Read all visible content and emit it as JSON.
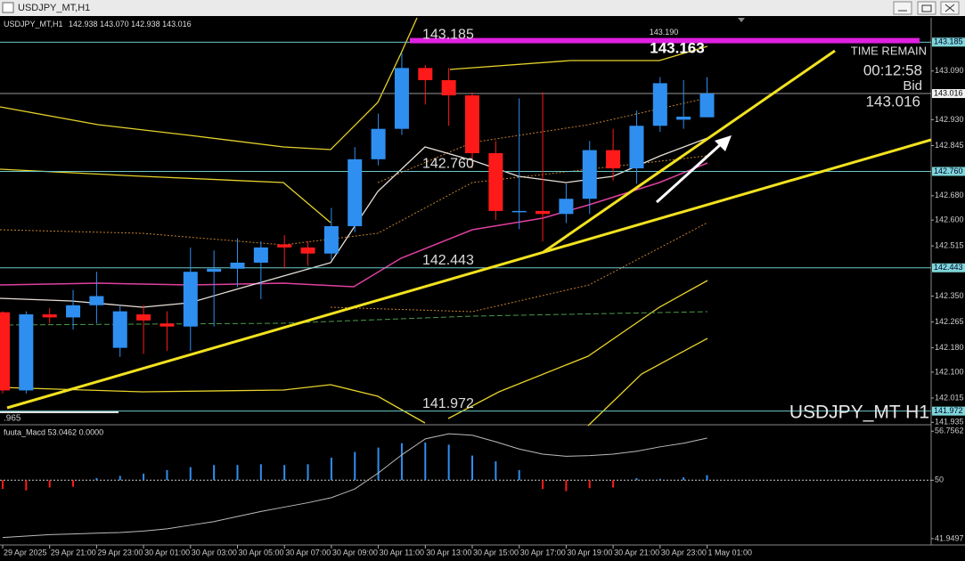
{
  "window": {
    "title": "USDJPY_MT,H1"
  },
  "chart_data": {
    "type": "candlestick",
    "symbol": "USDJPY_MT,H1",
    "ohlc_text": "142.938 143.070 142.938 143.016",
    "watermark": "USDJPY_MT H1",
    "edge_label": ".965",
    "categories": [
      "29 Apr 2025",
      null,
      "29 Apr 21:00",
      null,
      "29 Apr 23:00",
      null,
      "30 Apr 01:00",
      null,
      "30 Apr 03:00",
      null,
      "30 Apr 05:00",
      null,
      "30 Apr 07:00",
      null,
      "30 Apr 09:00",
      null,
      "30 Apr 11:00",
      null,
      "30 Apr 13:00",
      null,
      "30 Apr 15:00",
      null,
      "30 Apr 17:00",
      null,
      "30 Apr 19:00",
      null,
      "30 Apr 21:00",
      null,
      "30 Apr 23:00",
      null,
      "1 May 01:00"
    ],
    "open": [
      142.297,
      142.04,
      142.29,
      142.28,
      142.32,
      142.18,
      142.29,
      142.26,
      142.25,
      142.43,
      142.44,
      142.46,
      142.52,
      142.51,
      142.49,
      142.58,
      142.8,
      142.9,
      143.1,
      143.06,
      143.01,
      142.82,
      142.63,
      142.63,
      142.62,
      142.67,
      142.83,
      142.77,
      142.91,
      142.93,
      142.938
    ],
    "high": [
      142.3,
      142.3,
      142.31,
      142.37,
      142.43,
      142.32,
      142.32,
      142.3,
      142.51,
      142.5,
      142.54,
      142.53,
      142.55,
      142.53,
      142.64,
      142.84,
      142.95,
      143.15,
      143.11,
      143.1,
      143.02,
      142.86,
      143.0,
      143.02,
      142.72,
      142.86,
      142.9,
      142.96,
      143.07,
      143.06,
      143.07
    ],
    "low": [
      142.03,
      142.03,
      142.26,
      142.24,
      142.26,
      142.15,
      142.16,
      142.17,
      142.17,
      142.25,
      142.38,
      142.34,
      142.44,
      142.45,
      142.47,
      142.56,
      142.78,
      142.88,
      142.98,
      142.91,
      142.77,
      142.6,
      142.57,
      142.53,
      142.59,
      142.62,
      142.73,
      142.72,
      142.89,
      142.9,
      142.938
    ],
    "close": [
      142.04,
      142.29,
      142.28,
      142.32,
      142.35,
      142.3,
      142.27,
      142.25,
      142.43,
      142.44,
      142.46,
      142.51,
      142.51,
      142.49,
      142.58,
      142.8,
      142.9,
      143.1,
      143.06,
      143.01,
      142.82,
      142.63,
      142.63,
      142.62,
      142.67,
      142.83,
      142.77,
      142.91,
      143.05,
      142.94,
      143.016
    ],
    "up_color": "#2f8ff0",
    "down_color": "#ff1a1a",
    "ylim": [
      141.93,
      143.265
    ],
    "yticks": [
      {
        "value": 143.09,
        "label": "143.090"
      },
      {
        "value": 142.93,
        "label": "142.930"
      },
      {
        "value": 142.845,
        "label": "142.845"
      },
      {
        "value": 142.68,
        "label": "142.680"
      },
      {
        "value": 142.6,
        "label": "142.600"
      },
      {
        "value": 142.515,
        "label": "142.515"
      },
      {
        "value": 142.35,
        "label": "142.350"
      },
      {
        "value": 142.265,
        "label": "142.265"
      },
      {
        "value": 142.18,
        "label": "142.180"
      },
      {
        "value": 142.1,
        "label": "142.100"
      },
      {
        "value": 142.015,
        "label": "142.015"
      },
      {
        "value": 141.935,
        "label": "141.935"
      }
    ],
    "levels": [
      {
        "value": 143.185,
        "label": "143.185"
      },
      {
        "value": 142.76,
        "label": "142.760"
      },
      {
        "value": 142.443,
        "label": "142.443"
      },
      {
        "value": 141.972,
        "label": "141.972"
      }
    ],
    "resistance": {
      "value": 143.19,
      "label": "143.190"
    },
    "bid": 143.016,
    "price_note": 143.163,
    "countdown_label": "TIME REMAIN",
    "countdown": "00:12:58",
    "bid_label": "Bid",
    "macd": {
      "label": "fuuta_Macd 53.0462 0.0000",
      "ylim": [
        41.2,
        57.4
      ],
      "yticks": [
        56.7562,
        50,
        41.9497
      ],
      "histogram": [
        48.8,
        48.6,
        49.0,
        49.1,
        50.3,
        50.6,
        50.9,
        51.4,
        51.8,
        52.1,
        52.1,
        52.2,
        52.1,
        52.2,
        53.1,
        53.9,
        54.5,
        55.1,
        55.2,
        54.9,
        53.4,
        52.6,
        51.4,
        48.8,
        48.5,
        48.9,
        49.0,
        50.3,
        50.2,
        50.4,
        50.7
      ],
      "signal": [
        42.1,
        42.3,
        42.5,
        42.6,
        42.7,
        42.8,
        43.0,
        43.3,
        43.8,
        44.3,
        45.0,
        45.7,
        46.3,
        46.9,
        47.6,
        48.8,
        51.0,
        53.5,
        55.7,
        56.4,
        56.2,
        55.3,
        54.3,
        53.6,
        53.3,
        53.4,
        53.6,
        54.0,
        54.6,
        55.1,
        55.8
      ]
    }
  }
}
